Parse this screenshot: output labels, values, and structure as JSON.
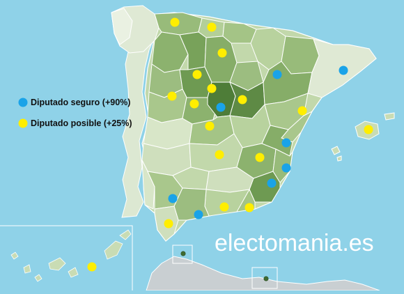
{
  "legend": {
    "items": [
      {
        "label": "Diputado seguro (+90%)",
        "color": "#1aa3e8"
      },
      {
        "label": "Diputado posible (+25%)",
        "color": "#ffee00"
      }
    ]
  },
  "watermark": "electomania.es",
  "colors": {
    "sea": "#8fd2e8",
    "land_africa": "#c9cfd2",
    "borders": "#ffffff",
    "shade_1": "#e6eedc",
    "shade_2": "#c9dcb4",
    "shade_3": "#a9c78c",
    "shade_4": "#86ad68",
    "shade_5": "#5e8a45"
  }
}
